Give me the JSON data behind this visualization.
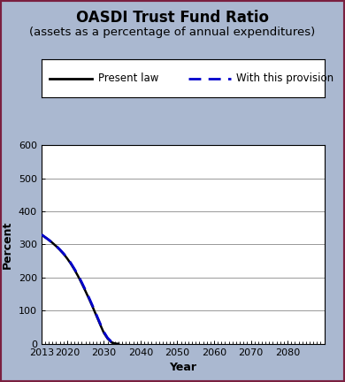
{
  "title": "OASDI Trust Fund Ratio",
  "subtitle": "(assets as a percentage of annual expenditures)",
  "xlabel": "Year",
  "ylabel": "Percent",
  "xlim": [
    2013,
    2090
  ],
  "ylim": [
    0,
    600
  ],
  "xticks": [
    2013,
    2020,
    2030,
    2040,
    2050,
    2060,
    2070,
    2080
  ],
  "yticks": [
    0,
    100,
    200,
    300,
    400,
    500,
    600
  ],
  "present_law_x": [
    2013,
    2014,
    2015,
    2016,
    2017,
    2018,
    2019,
    2020,
    2021,
    2022,
    2023,
    2024,
    2025,
    2026,
    2027,
    2028,
    2029,
    2030,
    2031,
    2032,
    2033,
    2034
  ],
  "present_law_y": [
    330,
    322,
    314,
    305,
    295,
    284,
    272,
    258,
    242,
    224,
    204,
    182,
    159,
    135,
    110,
    84,
    58,
    33,
    16,
    5,
    1,
    0
  ],
  "provision_x": [
    2013,
    2014,
    2015,
    2016,
    2017,
    2018,
    2019,
    2020,
    2021,
    2022,
    2023,
    2024,
    2025,
    2026,
    2027,
    2028,
    2029,
    2030,
    2031,
    2032,
    2033,
    2034
  ],
  "provision_y": [
    330,
    322,
    314,
    305,
    296,
    285,
    273,
    260,
    244,
    226,
    207,
    185,
    162,
    138,
    113,
    87,
    61,
    36,
    18,
    7,
    2,
    0
  ],
  "present_law_color": "#000000",
  "provision_color": "#0000cc",
  "legend_present_law": "Present law",
  "legend_provision": "With this provision",
  "background_color": "#aab8d0",
  "plot_bg_color": "#ffffff",
  "outer_border_color": "#7a2040",
  "title_fontsize": 12,
  "subtitle_fontsize": 9.5,
  "axis_label_fontsize": 9,
  "tick_fontsize": 8,
  "legend_fontsize": 8.5
}
